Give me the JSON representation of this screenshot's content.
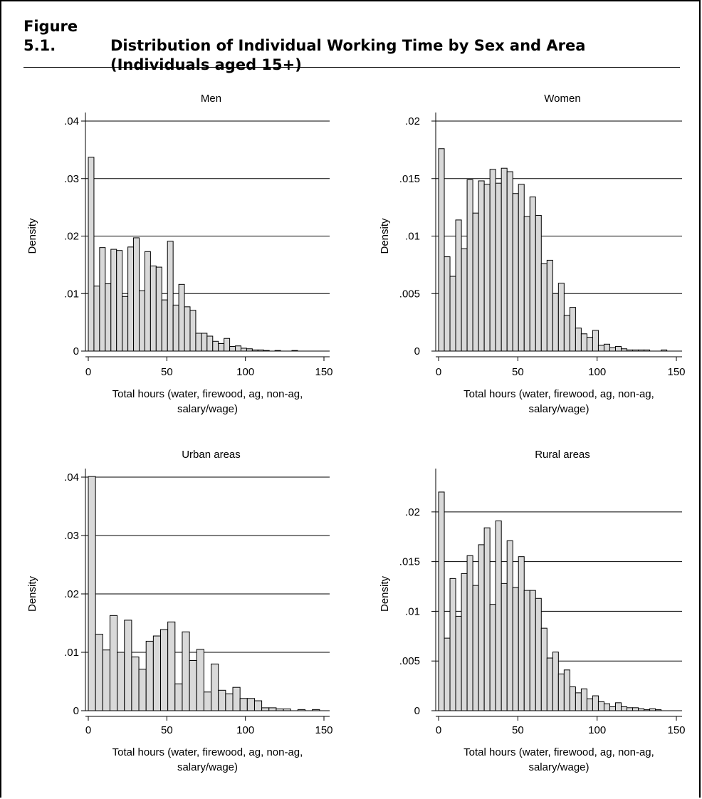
{
  "figure": {
    "number": "Figure 5.1.",
    "title_line1": "Distribution of Individual Working Time by Sex and Area",
    "title_line2": "(Individuals aged 15+)"
  },
  "style": {
    "bar_fill": "#d9d9d9",
    "bar_stroke": "#000000",
    "grid_color": "#000000"
  },
  "chart_data": [
    {
      "type": "bar",
      "title": "Men",
      "xlabel": "Total hours (water, firewood, ag, non-ag, salary/wage)",
      "ylabel": "Density",
      "xlim": [
        0,
        150
      ],
      "ylim": [
        0,
        0.04
      ],
      "xticks": [
        0,
        50,
        100,
        150
      ],
      "yticks": [
        0,
        0.01,
        0.02,
        0.03,
        0.04
      ],
      "ytick_labels": [
        "0",
        ".01",
        ".02",
        ".03",
        ".04"
      ],
      "bin_width": 3.6,
      "values": [
        0.0337,
        0.0113,
        0.018,
        0.0117,
        0.0177,
        0.0175,
        0.0095,
        0.0181,
        0.0197,
        0.0105,
        0.0173,
        0.0148,
        0.0146,
        0.0089,
        0.0191,
        0.008,
        0.0116,
        0.0077,
        0.0071,
        0.0031,
        0.0031,
        0.0026,
        0.0017,
        0.0013,
        0.0022,
        0.0008,
        0.0009,
        0.0005,
        0.0004,
        0.0002,
        0.0002,
        0.0001,
        0.0,
        0.0001,
        0.0,
        0.0,
        0.0001
      ]
    },
    {
      "type": "bar",
      "title": "Women",
      "xlabel": "Total hours (water, firewood, ag, non-ag, salary/wage)",
      "ylabel": "Density",
      "xlim": [
        0,
        150
      ],
      "ylim": [
        0,
        0.02
      ],
      "xticks": [
        0,
        50,
        100,
        150
      ],
      "yticks": [
        0,
        0.005,
        0.01,
        0.015,
        0.02
      ],
      "ytick_labels": [
        "0",
        ".005",
        ".01",
        ".015",
        ".02"
      ],
      "bin_width": 3.6,
      "values": [
        0.0176,
        0.0082,
        0.0065,
        0.0114,
        0.0089,
        0.0149,
        0.012,
        0.0148,
        0.0145,
        0.0158,
        0.0146,
        0.0159,
        0.0156,
        0.0137,
        0.0145,
        0.0117,
        0.0134,
        0.0118,
        0.0076,
        0.0079,
        0.005,
        0.0059,
        0.0031,
        0.0038,
        0.002,
        0.0015,
        0.0012,
        0.0018,
        0.0005,
        0.0006,
        0.0003,
        0.0004,
        0.0002,
        0.0001,
        0.0001,
        0.0001,
        0.0001,
        0.0,
        0.0,
        0.0001
      ]
    },
    {
      "type": "bar",
      "title": "Urban areas",
      "xlabel": "Total hours (water, firewood, ag, non-ag, salary/wage)",
      "ylabel": "Density",
      "xlim": [
        0,
        150
      ],
      "ylim": [
        0,
        0.04
      ],
      "xticks": [
        0,
        50,
        100,
        150
      ],
      "yticks": [
        0,
        0.01,
        0.02,
        0.03,
        0.04
      ],
      "ytick_labels": [
        "0",
        ".01",
        ".02",
        ".03",
        ".04"
      ],
      "bin_width": 4.6,
      "values": [
        0.0401,
        0.0131,
        0.0104,
        0.0163,
        0.01,
        0.0155,
        0.0092,
        0.0071,
        0.0119,
        0.0128,
        0.0139,
        0.0152,
        0.0046,
        0.0135,
        0.0086,
        0.0105,
        0.0032,
        0.008,
        0.0035,
        0.0029,
        0.004,
        0.0021,
        0.0021,
        0.0017,
        0.0005,
        0.0005,
        0.0003,
        0.0003,
        0.0,
        0.0002,
        0.0,
        0.0002
      ]
    },
    {
      "type": "bar",
      "title": "Rural areas",
      "xlabel": "Total hours (water, firewood, ag, non-ag, salary/wage)",
      "ylabel": "Density",
      "xlim": [
        0,
        150
      ],
      "ylim": [
        0,
        0.0235
      ],
      "xticks": [
        0,
        50,
        100,
        150
      ],
      "yticks": [
        0,
        0.005,
        0.01,
        0.015,
        0.02
      ],
      "ytick_labels": [
        "0",
        ".005",
        ".01",
        ".015",
        ".02"
      ],
      "bin_width": 3.6,
      "values": [
        0.022,
        0.0073,
        0.0133,
        0.0095,
        0.0138,
        0.0156,
        0.0126,
        0.0167,
        0.0184,
        0.0107,
        0.0191,
        0.0128,
        0.0171,
        0.0124,
        0.0155,
        0.0121,
        0.0121,
        0.0113,
        0.0083,
        0.0053,
        0.0059,
        0.0037,
        0.0041,
        0.0024,
        0.0018,
        0.0022,
        0.0012,
        0.0015,
        0.0009,
        0.0007,
        0.0004,
        0.0008,
        0.0004,
        0.0003,
        0.0003,
        0.0002,
        0.0001,
        0.0002,
        0.0001
      ]
    }
  ]
}
